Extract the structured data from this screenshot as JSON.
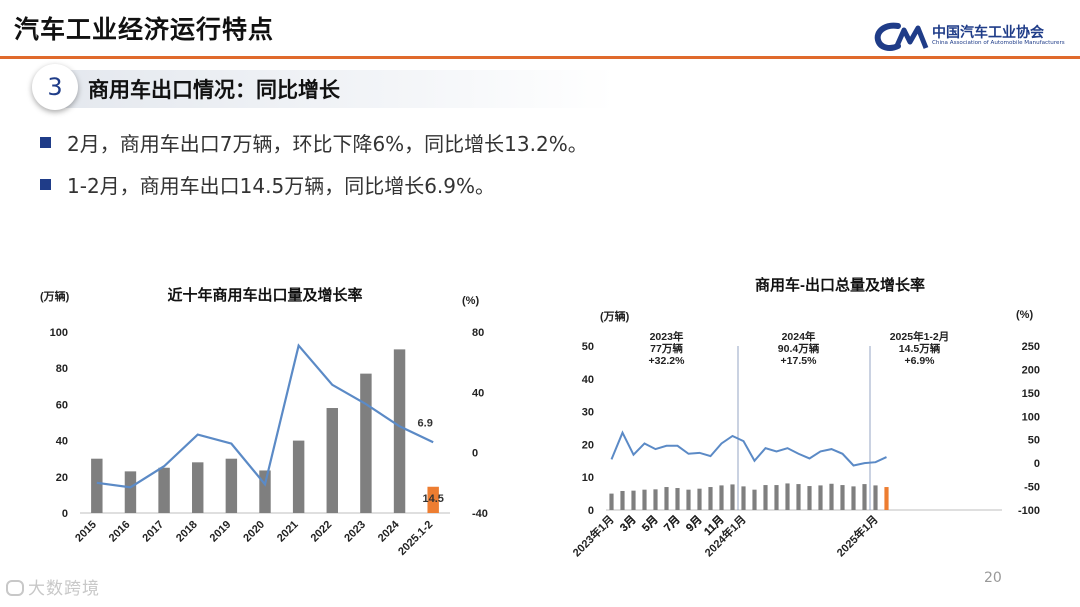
{
  "header": {
    "title": "汽车工业经济运行特点",
    "logo_cn": "中国汽车工业协会",
    "logo_en": "China Association of Automobile Manufacturers",
    "accent_color": "#e06a2c",
    "brand_color": "#1f3c88"
  },
  "section": {
    "number": "3",
    "title": "商用车出口情况：同比增长"
  },
  "bullets": [
    "2月，商用车出口7万辆，环比下降6%，同比增长13.2%。",
    "1-2月，商用车出口14.5万辆，同比增长6.9%。"
  ],
  "footer": {
    "page_number": "20",
    "watermark": "大数跨境"
  },
  "chart_data": [
    {
      "type": "bar+line",
      "title": "近十年商用车出口量及增长率",
      "ylabel_left": "(万辆)",
      "ylabel_right": "(%)",
      "ylim_left": [
        0,
        100
      ],
      "ylim_right": [
        -40,
        80
      ],
      "left_ticks": [
        "0",
        "20",
        "40",
        "60",
        "80",
        "100"
      ],
      "right_ticks": [
        "-40",
        "0",
        "40",
        "80"
      ],
      "categories": [
        "2015",
        "2016",
        "2017",
        "2018",
        "2019",
        "2020",
        "2021",
        "2022",
        "2023",
        "2024",
        "2025.1-2"
      ],
      "series": [
        {
          "name": "出口量",
          "axis": "left",
          "values": [
            30,
            23,
            25,
            28,
            30,
            23.5,
            40,
            58,
            77,
            90.4,
            14.5
          ],
          "colors": [
            "#7f7f7f",
            "#7f7f7f",
            "#7f7f7f",
            "#7f7f7f",
            "#7f7f7f",
            "#7f7f7f",
            "#7f7f7f",
            "#7f7f7f",
            "#7f7f7f",
            "#7f7f7f",
            "#ed7d31"
          ]
        },
        {
          "name": "增长率",
          "axis": "right",
          "values": [
            -20,
            -23,
            -9,
            12,
            6,
            -21,
            71,
            45,
            32.2,
            17.5,
            6.9
          ],
          "color": "#5b8ac6"
        }
      ],
      "data_labels": [
        {
          "text": "14.5",
          "series": 0,
          "index": 10
        },
        {
          "text": "6.9",
          "series": 1,
          "index": 10
        }
      ]
    },
    {
      "type": "bar+line",
      "title": "商用车-出口总量及增长率",
      "ylabel_left": "(万辆)",
      "ylabel_right": "(%)",
      "ylim_left": [
        0,
        50
      ],
      "ylim_right": [
        -100,
        250
      ],
      "left_ticks": [
        "0",
        "10",
        "20",
        "30",
        "40",
        "50"
      ],
      "right_ticks": [
        "-100",
        "-50",
        "0",
        "50",
        "100",
        "150",
        "200",
        "250"
      ],
      "categories": [
        "2023年1月",
        "2月",
        "3月",
        "4月",
        "5月",
        "6月",
        "7月",
        "8月",
        "9月",
        "10月",
        "11月",
        "12月",
        "2024年1月",
        "2月",
        "3月",
        "4月",
        "5月",
        "6月",
        "7月",
        "8月",
        "9月",
        "10月",
        "11月",
        "12月",
        "2025年1月",
        "2月",
        "3月",
        "4月",
        "5月",
        "6月",
        "7月",
        "8月",
        "9月",
        "10月",
        "11月",
        "12月"
      ],
      "tick_labels": [
        "2023年1月",
        "3月",
        "5月",
        "7月",
        "9月",
        "11月",
        "2024年1月",
        "3月",
        "5月",
        "7月",
        "9月",
        "11月",
        "2025年1月",
        "3月",
        "5月",
        "7月",
        "9月",
        "11月"
      ],
      "series": [
        {
          "name": "出口总量",
          "axis": "left",
          "values": [
            5,
            5.8,
            5.9,
            6.2,
            6.3,
            7,
            6.7,
            6.2,
            6.5,
            7,
            7.5,
            7.8,
            7.2,
            6.2,
            7.6,
            7.6,
            8.1,
            7.9,
            7.3,
            7.5,
            8,
            7.6,
            7.2,
            7.9,
            7.5,
            7,
            null,
            null,
            null,
            null,
            null,
            null,
            null,
            null,
            null,
            null
          ],
          "color": "#7f7f7f",
          "highlight_index": 25,
          "highlight_color": "#ed7d31"
        },
        {
          "name": "增长率",
          "axis": "right",
          "values": [
            8,
            65,
            18,
            42,
            30,
            37,
            37,
            20,
            22,
            15,
            42,
            58,
            47,
            5,
            32,
            25,
            32,
            20,
            10,
            25,
            30,
            20,
            -5,
            0,
            2,
            13,
            null,
            null,
            null,
            null,
            null,
            null,
            null,
            null,
            null,
            null
          ],
          "color": "#5b8ac6"
        }
      ],
      "annotations": [
        {
          "lines": [
            "2023年",
            "77万辆",
            "+32.2%"
          ],
          "index": 5
        },
        {
          "lines": [
            "2024年",
            "90.4万辆",
            "+17.5%"
          ],
          "index": 17
        },
        {
          "lines": [
            "2025年1-2月",
            "14.5万辆",
            "+6.9%"
          ],
          "index": 28
        }
      ],
      "dividers_after_index": [
        11,
        23
      ]
    }
  ]
}
